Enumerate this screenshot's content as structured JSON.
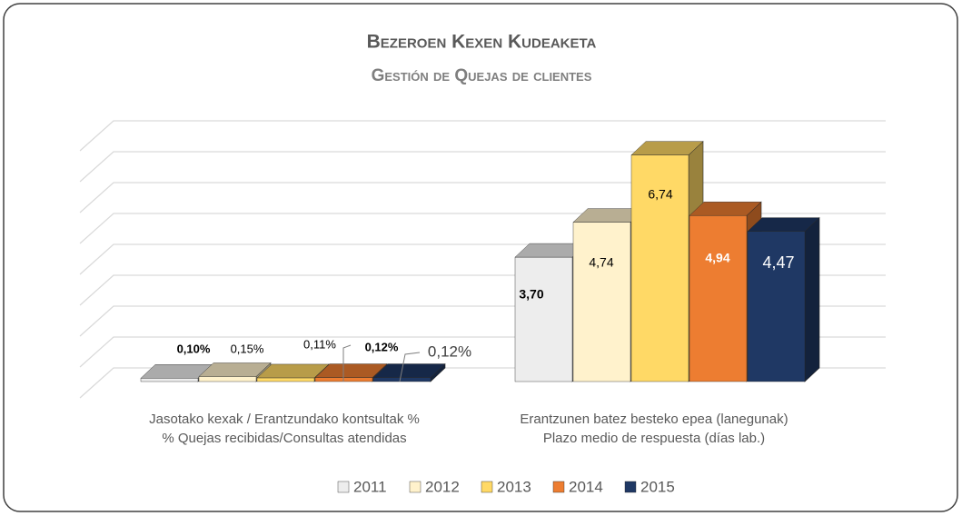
{
  "chart_data": {
    "type": "bar3d",
    "title": "Bezeroen Kexen Kudeaketa",
    "subtitle": "Gestión de Quejas de clientes",
    "categories": [
      [
        "Jasotako kexak / Erantzundako kontsultak %",
        "% Quejas recibidas/Consultas atendidas"
      ],
      [
        "Erantzunen batez besteko epea (lanegunak)",
        "Plazo medio de respuesta (días lab.)"
      ]
    ],
    "series": [
      {
        "name": "2011",
        "color": "#ededed",
        "values": [
          0.1,
          3.7
        ],
        "value_labels": [
          "0,10%",
          "3,70"
        ]
      },
      {
        "name": "2012",
        "color": "#fff2cc",
        "values": [
          0.15,
          4.74
        ],
        "value_labels": [
          "0,15%",
          "4,74"
        ]
      },
      {
        "name": "2013",
        "color": "#ffd966",
        "values": [
          0.11,
          6.74
        ],
        "value_labels": [
          "0,11%",
          "6,74"
        ]
      },
      {
        "name": "2014",
        "color": "#ed7d31",
        "values": [
          0.12,
          4.94
        ],
        "value_labels": [
          "0,12%",
          "4,94"
        ]
      },
      {
        "name": "2015",
        "color": "#1f3864",
        "values": [
          0.12,
          4.47
        ],
        "value_labels": [
          "0,12%",
          "4,47"
        ]
      }
    ],
    "ylim": [
      0,
      8
    ],
    "yticks": [
      0,
      1,
      2,
      3,
      4,
      5,
      6,
      7,
      8
    ],
    "grid": true
  }
}
